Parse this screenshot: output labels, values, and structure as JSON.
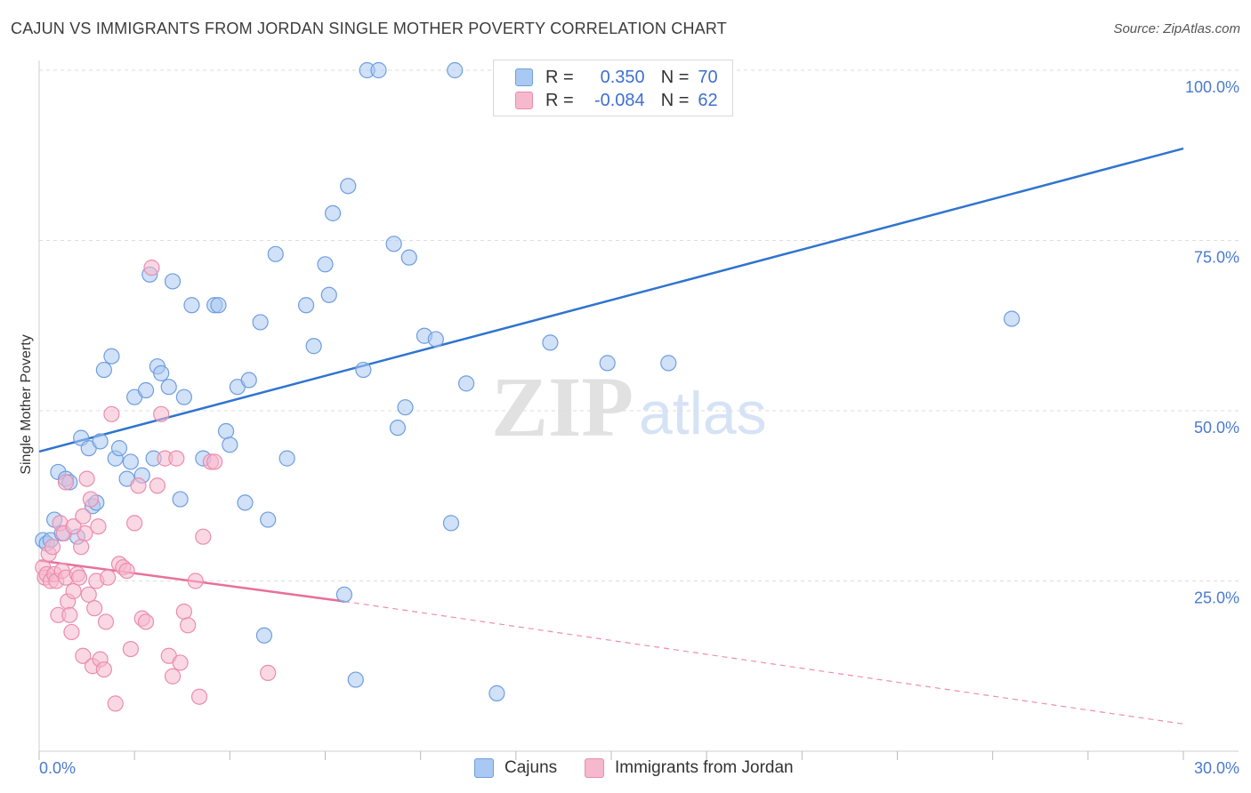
{
  "title": "CAJUN VS IMMIGRANTS FROM JORDAN SINGLE MOTHER POVERTY CORRELATION CHART",
  "source": "Source: ZipAtlas.com",
  "watermark": {
    "zip": "ZIP",
    "atlas": "atlas"
  },
  "colors": {
    "cajun_fill": "#a9c8f2",
    "cajun_stroke": "#6f9ede",
    "cajun_line": "#2f74d0",
    "jordan_fill": "#f6b8cc",
    "jordan_stroke": "#eb8cae",
    "jordan_line": "#e8709a",
    "grid": "#dddddd",
    "axis_text": "#4a7ad0"
  },
  "legend": {
    "rows": [
      {
        "r_label": "R =",
        "r_value": "0.350",
        "n_label": "N =",
        "n_value": "70"
      },
      {
        "r_label": "R =",
        "r_value": "-0.084",
        "n_label": "N =",
        "n_value": "62"
      }
    ]
  },
  "bottom_legend": {
    "cajun": "Cajuns",
    "jordan": "Immigrants from Jordan"
  },
  "chart_data": {
    "type": "scatter",
    "title": "CAJUN VS IMMIGRANTS FROM JORDAN SINGLE MOTHER POVERTY CORRELATION CHART",
    "xlabel": "",
    "ylabel": "Single Mother Poverty",
    "xlim": [
      0,
      30
    ],
    "ylim": [
      0,
      100
    ],
    "x_tick_labels": [
      "0.0%",
      "30.0%"
    ],
    "y_tick_labels": [
      "25.0%",
      "50.0%",
      "75.0%",
      "100.0%"
    ],
    "grid": true,
    "legend_position": "top-center",
    "series": [
      {
        "name": "Cajuns",
        "r": 0.35,
        "n": 70,
        "trend": {
          "x": [
            0,
            30
          ],
          "y": [
            44,
            88.5
          ]
        },
        "points": [
          [
            0.1,
            31
          ],
          [
            0.2,
            30.5
          ],
          [
            0.3,
            31
          ],
          [
            0.4,
            34
          ],
          [
            0.5,
            41
          ],
          [
            0.6,
            32
          ],
          [
            0.7,
            40
          ],
          [
            0.8,
            39.5
          ],
          [
            1.0,
            31.5
          ],
          [
            1.1,
            46
          ],
          [
            1.3,
            44.5
          ],
          [
            1.4,
            36
          ],
          [
            1.5,
            36.5
          ],
          [
            1.6,
            45.5
          ],
          [
            1.7,
            56
          ],
          [
            1.9,
            58
          ],
          [
            2.0,
            43
          ],
          [
            2.1,
            44.5
          ],
          [
            2.3,
            40
          ],
          [
            2.4,
            42.5
          ],
          [
            2.5,
            52
          ],
          [
            2.7,
            40.5
          ],
          [
            2.8,
            53
          ],
          [
            2.9,
            70
          ],
          [
            3.0,
            43
          ],
          [
            3.1,
            56.5
          ],
          [
            3.2,
            55.5
          ],
          [
            3.4,
            53.5
          ],
          [
            3.5,
            69
          ],
          [
            3.7,
            37
          ],
          [
            3.8,
            52
          ],
          [
            4.0,
            65.5
          ],
          [
            4.3,
            43
          ],
          [
            4.6,
            65.5
          ],
          [
            4.7,
            65.5
          ],
          [
            4.9,
            47
          ],
          [
            5.0,
            45
          ],
          [
            5.2,
            53.5
          ],
          [
            5.4,
            36.5
          ],
          [
            5.5,
            54.5
          ],
          [
            5.8,
            63
          ],
          [
            5.9,
            17
          ],
          [
            6.0,
            34
          ],
          [
            6.2,
            73
          ],
          [
            6.5,
            43
          ],
          [
            7.0,
            65.5
          ],
          [
            7.2,
            59.5
          ],
          [
            7.5,
            71.5
          ],
          [
            7.6,
            67
          ],
          [
            7.7,
            79
          ],
          [
            8.0,
            23
          ],
          [
            8.1,
            83
          ],
          [
            8.3,
            10.5
          ],
          [
            8.5,
            56
          ],
          [
            8.6,
            100
          ],
          [
            8.9,
            100
          ],
          [
            9.3,
            74.5
          ],
          [
            9.4,
            47.5
          ],
          [
            9.6,
            50.5
          ],
          [
            9.7,
            72.5
          ],
          [
            10.1,
            61
          ],
          [
            10.4,
            60.5
          ],
          [
            10.8,
            33.5
          ],
          [
            10.9,
            100
          ],
          [
            11.2,
            54
          ],
          [
            12.0,
            8.5
          ],
          [
            13.4,
            60
          ],
          [
            14.9,
            57
          ],
          [
            16.5,
            57
          ],
          [
            25.5,
            63.5
          ]
        ]
      },
      {
        "name": "Immigrants from Jordan",
        "r": -0.084,
        "n": 62,
        "trend": {
          "x": [
            0,
            8
          ],
          "y": [
            28,
            22
          ]
        },
        "trend_extension": {
          "x": [
            8,
            30
          ],
          "y": [
            22,
            4
          ]
        },
        "points": [
          [
            0.1,
            27
          ],
          [
            0.15,
            25.5
          ],
          [
            0.2,
            26
          ],
          [
            0.25,
            29
          ],
          [
            0.3,
            25
          ],
          [
            0.35,
            30
          ],
          [
            0.4,
            26
          ],
          [
            0.45,
            25
          ],
          [
            0.5,
            20
          ],
          [
            0.55,
            33.5
          ],
          [
            0.6,
            26.5
          ],
          [
            0.65,
            32
          ],
          [
            0.7,
            25.5
          ],
          [
            0.75,
            22
          ],
          [
            0.8,
            20
          ],
          [
            0.85,
            17.5
          ],
          [
            0.9,
            23.5
          ],
          [
            1.0,
            26
          ],
          [
            1.1,
            30
          ],
          [
            1.15,
            14
          ],
          [
            1.2,
            32
          ],
          [
            1.3,
            23
          ],
          [
            1.35,
            37
          ],
          [
            1.4,
            12.5
          ],
          [
            1.45,
            21
          ],
          [
            1.5,
            25
          ],
          [
            1.6,
            13.5
          ],
          [
            1.7,
            12
          ],
          [
            1.75,
            19
          ],
          [
            1.8,
            25.5
          ],
          [
            1.9,
            49.5
          ],
          [
            2.0,
            7
          ],
          [
            2.1,
            27.5
          ],
          [
            2.2,
            27
          ],
          [
            2.3,
            26.5
          ],
          [
            2.4,
            15
          ],
          [
            2.5,
            33.5
          ],
          [
            2.6,
            39
          ],
          [
            2.7,
            19.5
          ],
          [
            2.8,
            19
          ],
          [
            2.95,
            71
          ],
          [
            3.1,
            39
          ],
          [
            3.2,
            49.5
          ],
          [
            3.3,
            43
          ],
          [
            3.4,
            14
          ],
          [
            3.5,
            11
          ],
          [
            3.6,
            43
          ],
          [
            3.7,
            13
          ],
          [
            3.8,
            20.5
          ],
          [
            3.9,
            18.5
          ],
          [
            4.1,
            25
          ],
          [
            4.2,
            8
          ],
          [
            4.3,
            31.5
          ],
          [
            4.5,
            42.5
          ],
          [
            4.6,
            42.5
          ],
          [
            6.0,
            11.5
          ],
          [
            0.9,
            33
          ],
          [
            1.25,
            40
          ],
          [
            1.55,
            33
          ],
          [
            1.05,
            25.5
          ],
          [
            0.7,
            39.5
          ],
          [
            1.15,
            34.5
          ]
        ]
      }
    ]
  }
}
